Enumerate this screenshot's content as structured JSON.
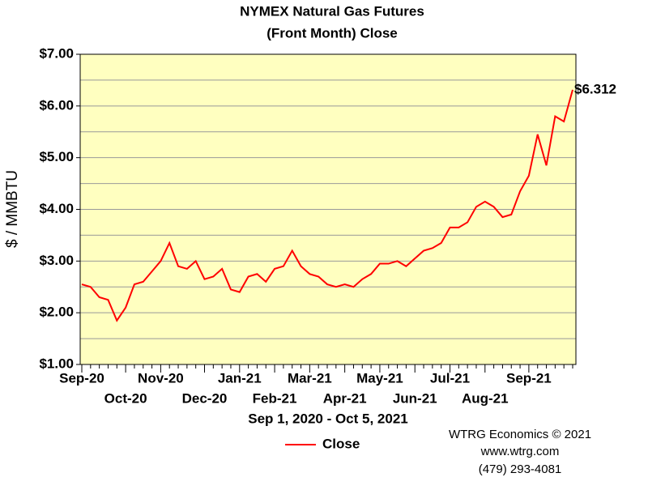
{
  "chart_data": {
    "type": "line",
    "title": [
      "NYMEX Natural Gas Futures",
      "(Front Month) Close"
    ],
    "y_label": "$ / MMBTU",
    "x_label": "Sep 1, 2020 - Oct 5, 2021",
    "credits": [
      "WTRG Economics © 2021",
      "www.wtrg.com",
      "(479) 293-4081"
    ],
    "categories": [
      "Sep-20",
      null,
      null,
      null,
      null,
      "Oct-20",
      null,
      null,
      null,
      "Nov-20",
      null,
      null,
      null,
      null,
      "Dec-20",
      null,
      null,
      null,
      "Jan-21",
      null,
      null,
      null,
      "Feb-21",
      null,
      null,
      null,
      "Mar-21",
      null,
      null,
      null,
      "Apr-21",
      null,
      null,
      null,
      "May-21",
      null,
      null,
      null,
      "Jun-21",
      null,
      null,
      null,
      "Jul-21",
      null,
      null,
      null,
      "Aug-21",
      null,
      null,
      null,
      null,
      "Sep-21",
      null,
      null,
      null,
      null,
      null
    ],
    "series": [
      {
        "name": "Close",
        "color": "#ff0000",
        "values": [
          2.55,
          2.5,
          2.3,
          2.25,
          1.85,
          2.1,
          2.55,
          2.6,
          2.8,
          3.0,
          3.35,
          2.9,
          2.85,
          3.0,
          2.65,
          2.7,
          2.85,
          2.45,
          2.4,
          2.7,
          2.75,
          2.6,
          2.85,
          2.9,
          3.2,
          2.9,
          2.75,
          2.7,
          2.55,
          2.5,
          2.55,
          2.5,
          2.65,
          2.75,
          2.95,
          2.95,
          3.0,
          2.9,
          3.05,
          3.2,
          3.25,
          3.35,
          3.65,
          3.65,
          3.75,
          4.05,
          4.15,
          4.05,
          3.85,
          3.9,
          4.35,
          4.65,
          5.45,
          4.85,
          5.8,
          5.7,
          6.312
        ],
        "value_labels": [
          null,
          null,
          null,
          null,
          null,
          null,
          null,
          null,
          null,
          null,
          null,
          null,
          null,
          null,
          null,
          null,
          null,
          null,
          null,
          null,
          null,
          null,
          null,
          null,
          null,
          null,
          null,
          null,
          null,
          null,
          null,
          null,
          null,
          null,
          null,
          null,
          null,
          null,
          null,
          null,
          null,
          null,
          null,
          null,
          null,
          null,
          null,
          null,
          null,
          null,
          null,
          null,
          null,
          null,
          null,
          null,
          "$6.312"
        ]
      }
    ],
    "ylim": [
      1,
      7
    ],
    "yticks": [
      {
        "value": 1,
        "label": "$1.00"
      },
      {
        "value": 2,
        "label": "$2.00"
      },
      {
        "value": 3,
        "label": "$3.00"
      },
      {
        "value": 4,
        "label": "$4.00"
      },
      {
        "value": 5,
        "label": "$5.00"
      },
      {
        "value": 6,
        "label": "$6.00"
      },
      {
        "value": 7,
        "label": "$7.00"
      }
    ],
    "minor_grid": [
      1.5,
      2.5,
      3.5,
      4.5,
      5.5,
      6.5
    ],
    "grid": true,
    "plot_background": "#ffffc0",
    "legend": "bottom"
  }
}
